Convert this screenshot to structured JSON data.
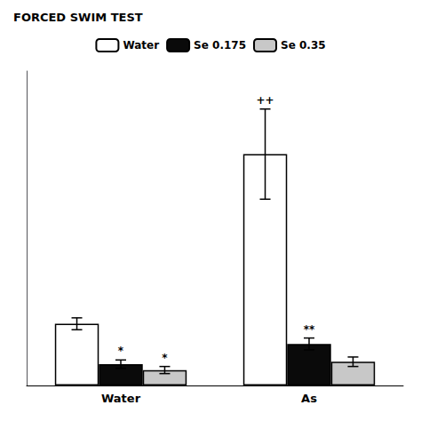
{
  "chart_data": {
    "type": "bar",
    "title": "FORCED SWIM TEST",
    "categories": [
      "Water",
      "As"
    ],
    "series": [
      {
        "name": "Water",
        "color": "#ffffff",
        "values": [
          52,
          195
        ],
        "errors": [
          5,
          38
        ],
        "annotations": [
          null,
          "++"
        ]
      },
      {
        "name": "Se 0.175",
        "color": "#0a0a0a",
        "values": [
          18,
          35
        ],
        "errors": [
          3.5,
          5
        ],
        "annotations": [
          "*",
          "**"
        ]
      },
      {
        "name": "Se 0.35",
        "color": "#c8c8c8",
        "values": [
          13,
          20
        ],
        "errors": [
          3,
          4
        ],
        "annotations": [
          "*",
          null
        ]
      }
    ],
    "ylim": [
      0,
      265
    ],
    "grid": false,
    "legend": "top",
    "tick_labels": "x"
  }
}
